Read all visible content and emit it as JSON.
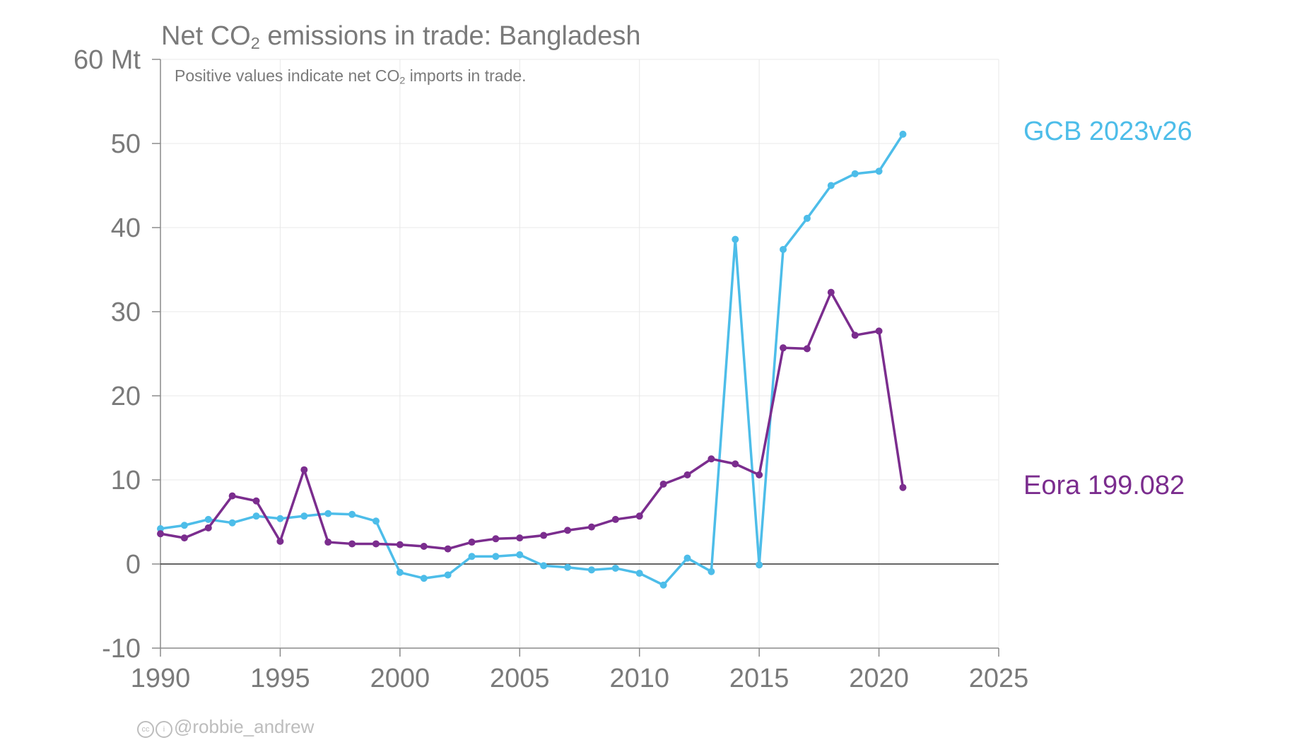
{
  "chart_data": {
    "type": "line",
    "title_main": "Net CO",
    "title_sub": "2",
    "title_rest": " emissions in trade: Bangladesh",
    "subtitle_main": "Positive values indicate net CO",
    "subtitle_sub": "2",
    "subtitle_rest": " imports in trade.",
    "y_top_label": "60 Mt",
    "ylim": [
      -10,
      60
    ],
    "xlim": [
      1990,
      2025
    ],
    "y_ticks": [
      -10,
      0,
      10,
      20,
      30,
      40,
      50
    ],
    "x_ticks": [
      1990,
      1995,
      2000,
      2005,
      2010,
      2015,
      2020,
      2025
    ],
    "grid": true,
    "x": [
      1990,
      1991,
      1992,
      1993,
      1994,
      1995,
      1996,
      1997,
      1998,
      1999,
      2000,
      2001,
      2002,
      2003,
      2004,
      2005,
      2006,
      2007,
      2008,
      2009,
      2010,
      2011,
      2012,
      2013,
      2014,
      2015,
      2016,
      2017,
      2018,
      2019,
      2020,
      2021
    ],
    "series": [
      {
        "name": "GCB 2023v26",
        "color": "#4dbde9",
        "values": [
          4.2,
          4.6,
          5.3,
          4.9,
          5.7,
          5.4,
          5.7,
          6.0,
          5.9,
          5.1,
          -1.0,
          -1.7,
          -1.3,
          0.9,
          0.9,
          1.1,
          -0.2,
          -0.4,
          -0.7,
          -0.5,
          -1.1,
          -2.5,
          0.7,
          -0.9,
          38.6,
          -0.1,
          37.4,
          41.1,
          45.0,
          46.4,
          46.7,
          51.1
        ]
      },
      {
        "name": "Eora 199.082",
        "color": "#7b2d8e",
        "values": [
          3.6,
          3.1,
          4.3,
          8.1,
          7.5,
          2.7,
          11.2,
          2.6,
          2.4,
          2.4,
          2.3,
          2.1,
          1.8,
          2.6,
          3.0,
          3.1,
          3.4,
          4.0,
          4.4,
          5.3,
          5.7,
          9.5,
          10.6,
          12.5,
          11.9,
          10.6,
          25.7,
          25.6,
          32.3,
          27.2,
          27.7,
          9.1
        ]
      }
    ]
  },
  "credit": "@robbie_andrew",
  "credit_icons": [
    "cc-icon",
    "by-icon"
  ]
}
